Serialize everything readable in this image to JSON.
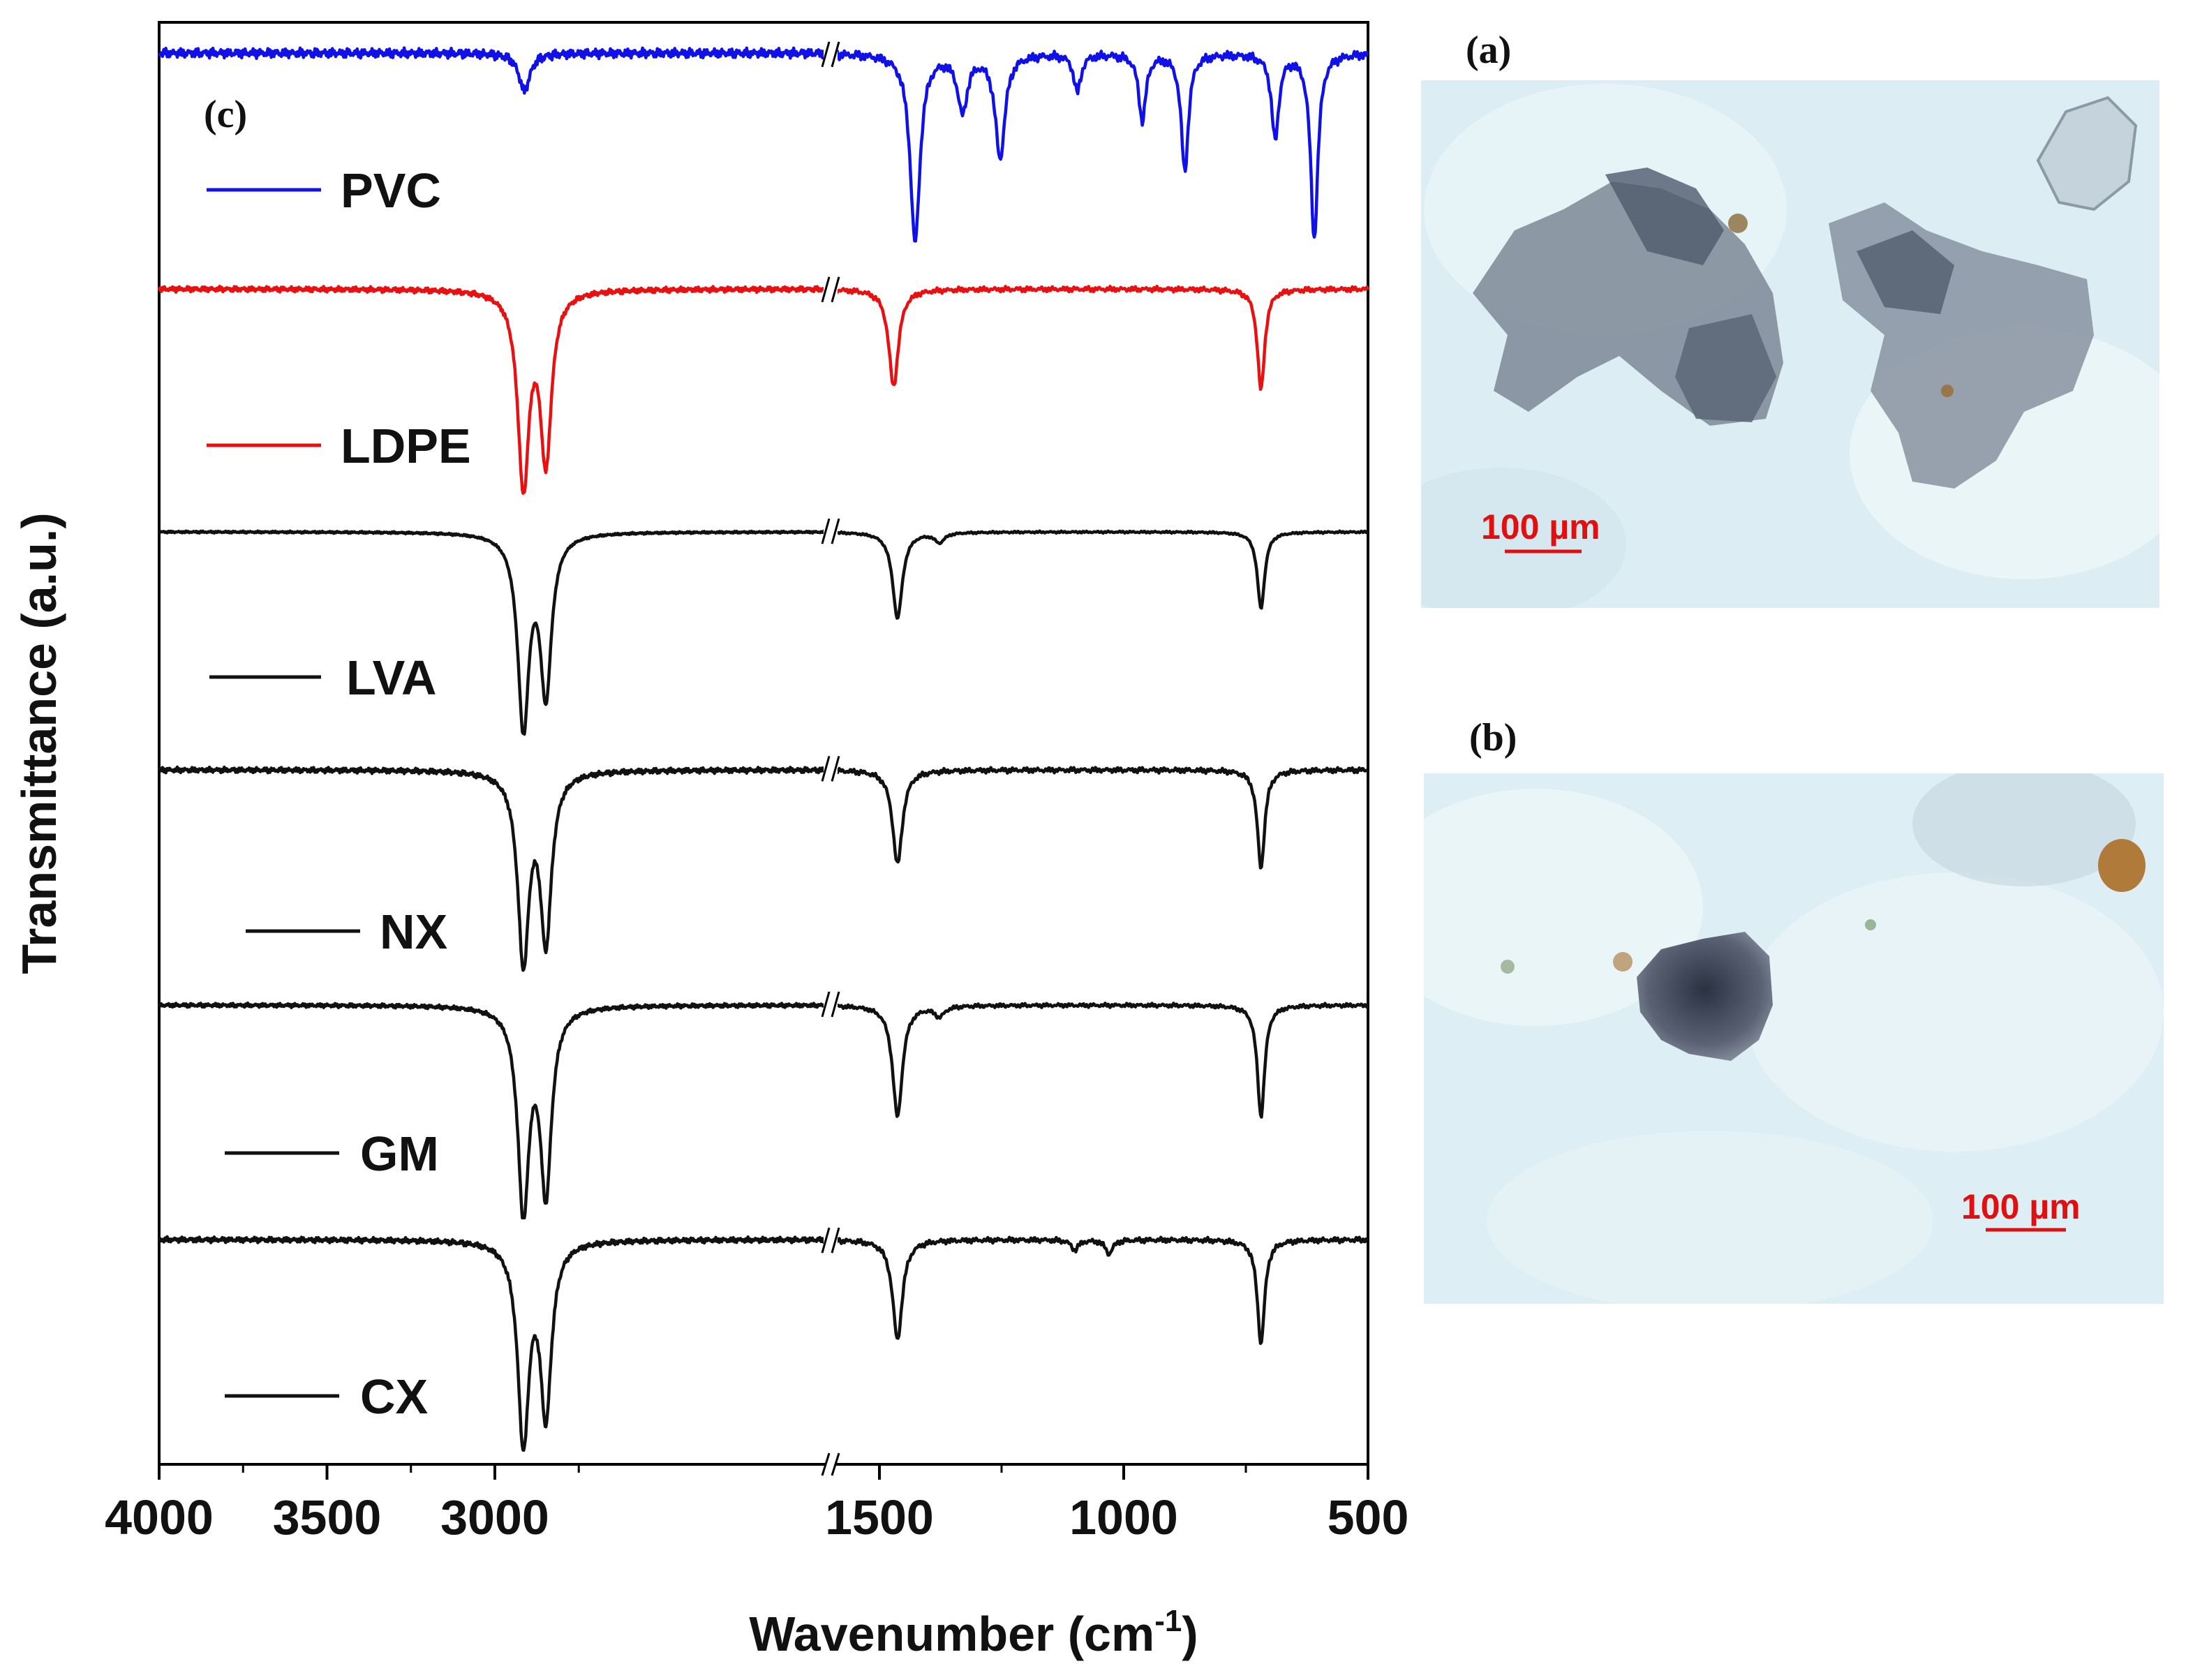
{
  "panels": {
    "a_label": "(a)",
    "b_label": "(b)",
    "c_label": "(c)",
    "scale_bar_a": "100 µm",
    "scale_bar_b": "100 µm"
  },
  "colors": {
    "pvc": "#1010e8",
    "ldpe": "#e81010",
    "sample": "#111111",
    "scale_bar": "#e01010"
  },
  "chart_data": {
    "type": "line",
    "xlabel": "Wavenumber (cm",
    "xlabel_superscript": "-1",
    "xlabel_end": ")",
    "ylabel": "Transmittance (a.u.)",
    "x_axis_broken": true,
    "x_segments": [
      [
        4000,
        2000
      ],
      [
        1600,
        500
      ]
    ],
    "x_ticks": [
      4000,
      3500,
      3000,
      1500,
      1000,
      500
    ],
    "legend_placement": "left, one label under each trace",
    "series": [
      {
        "name": "PVC",
        "color_key": "pvc",
        "peaks": [
          {
            "x": 2912,
            "depth": 0.2
          },
          {
            "x": 1427,
            "depth": 1.0
          },
          {
            "x": 1330,
            "depth": 0.3
          },
          {
            "x": 1253,
            "depth": 0.55
          },
          {
            "x": 1095,
            "depth": 0.2
          },
          {
            "x": 962,
            "depth": 0.35
          },
          {
            "x": 875,
            "depth": 0.62
          },
          {
            "x": 690,
            "depth": 0.45
          },
          {
            "x": 610,
            "depth": 0.98
          }
        ]
      },
      {
        "name": "LDPE",
        "color_key": "ldpe",
        "peaks": [
          {
            "x": 2915,
            "depth": 1.0
          },
          {
            "x": 2848,
            "depth": 0.86
          },
          {
            "x": 1471,
            "depth": 0.5
          },
          {
            "x": 719,
            "depth": 0.52
          }
        ]
      },
      {
        "name": "LVA",
        "color_key": "sample",
        "peaks": [
          {
            "x": 2915,
            "depth": 1.0
          },
          {
            "x": 2848,
            "depth": 0.82
          },
          {
            "x": 1463,
            "depth": 0.45
          },
          {
            "x": 1377,
            "depth": 0.05
          },
          {
            "x": 719,
            "depth": 0.4
          }
        ]
      },
      {
        "name": "NX",
        "color_key": "sample",
        "peaks": [
          {
            "x": 2915,
            "depth": 1.0
          },
          {
            "x": 2848,
            "depth": 0.88
          },
          {
            "x": 1463,
            "depth": 0.5
          },
          {
            "x": 719,
            "depth": 0.52
          }
        ]
      },
      {
        "name": "GM",
        "color_key": "sample",
        "peaks": [
          {
            "x": 2915,
            "depth": 1.0
          },
          {
            "x": 2848,
            "depth": 0.9
          },
          {
            "x": 1463,
            "depth": 0.55
          },
          {
            "x": 1377,
            "depth": 0.05
          },
          {
            "x": 719,
            "depth": 0.55
          }
        ]
      },
      {
        "name": "CX",
        "color_key": "sample",
        "peaks": [
          {
            "x": 2915,
            "depth": 1.0
          },
          {
            "x": 2848,
            "depth": 0.85
          },
          {
            "x": 1463,
            "depth": 0.5
          },
          {
            "x": 1100,
            "depth": 0.05
          },
          {
            "x": 1030,
            "depth": 0.07
          },
          {
            "x": 719,
            "depth": 0.52
          }
        ]
      }
    ]
  }
}
